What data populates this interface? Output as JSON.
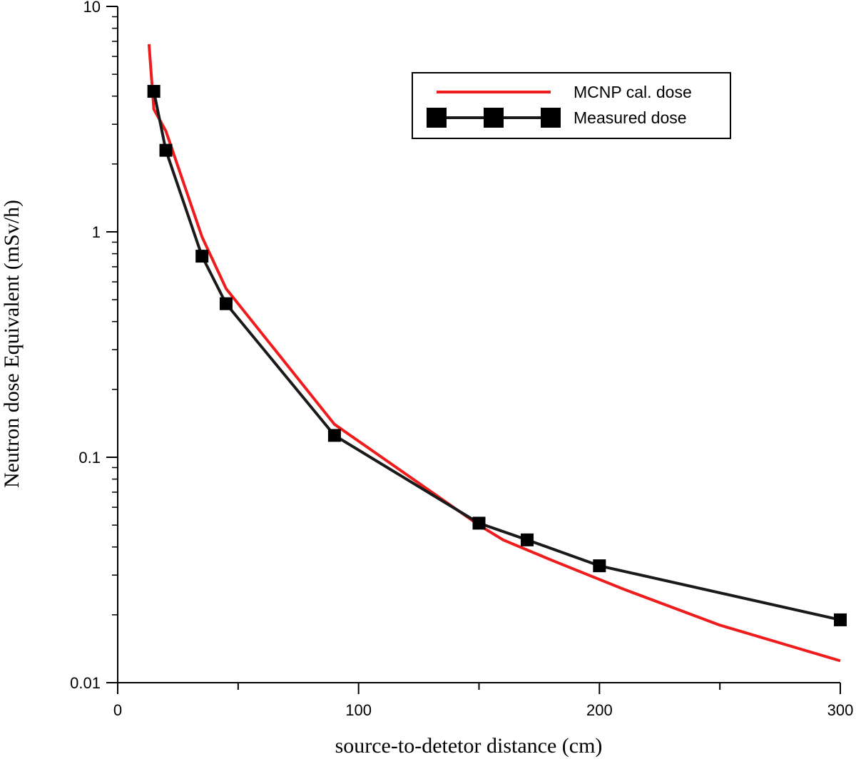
{
  "chart_data": {
    "type": "line",
    "xlabel": "source-to-detetor distance (cm)",
    "ylabel": "Neutron dose Equivalent (mSv/h)",
    "xlim": [
      0,
      300
    ],
    "ylim": [
      0.01,
      10
    ],
    "yscale": "log",
    "x_ticks": [
      0,
      100,
      200,
      300
    ],
    "x_tick_labels": [
      "0",
      "100",
      "200",
      "300"
    ],
    "y_ticks": [
      0.01,
      0.1,
      1,
      10
    ],
    "y_tick_labels": [
      "0.01",
      "0.1",
      "1",
      "10"
    ],
    "grid": false,
    "legend_position": "top-right",
    "series": [
      {
        "name": "MCNP cal. dose",
        "color": "#ee1c1c",
        "marker": "none",
        "x": [
          13,
          15,
          20,
          35,
          45,
          90,
          150,
          160,
          180,
          210,
          250,
          300
        ],
        "y": [
          6.8,
          3.5,
          2.8,
          0.95,
          0.56,
          0.14,
          0.05,
          0.043,
          0.035,
          0.026,
          0.018,
          0.0125
        ]
      },
      {
        "name": "Measured dose",
        "color": "#1a1a1a",
        "marker": "square",
        "x": [
          15,
          20,
          35,
          45,
          90,
          150,
          170,
          200,
          300
        ],
        "y": [
          4.2,
          2.3,
          0.78,
          0.48,
          0.125,
          0.051,
          0.043,
          0.033,
          0.019
        ]
      }
    ]
  }
}
